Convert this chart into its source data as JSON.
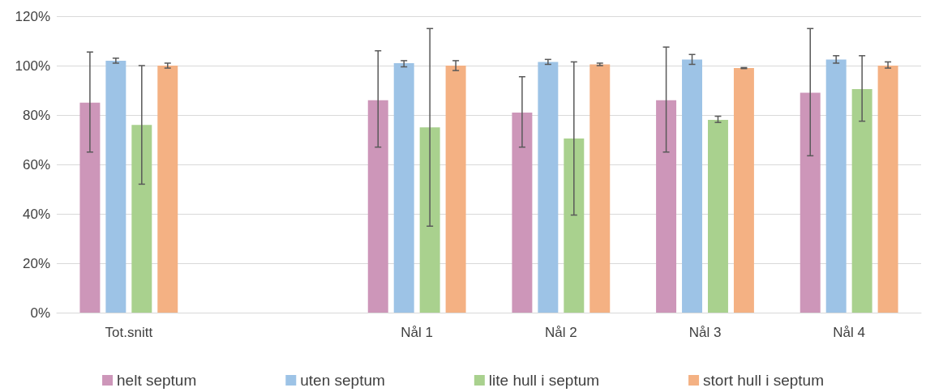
{
  "chart_data": {
    "type": "bar",
    "categories": [
      "Tot.snitt",
      null,
      "Nål 1",
      "Nål 2",
      "Nål 3",
      "Nål 4"
    ],
    "series": [
      {
        "name": "helt septum",
        "color": "#cd96b9",
        "values": [
          85,
          null,
          86,
          81,
          86,
          89
        ],
        "errors": [
          [
            65,
            105.5
          ],
          null,
          [
            67,
            106
          ],
          [
            67,
            95.5
          ],
          [
            65,
            107.5
          ],
          [
            63.5,
            115
          ]
        ]
      },
      {
        "name": "uten septum",
        "color": "#9dc3e6",
        "values": [
          102,
          null,
          101,
          101.5,
          102.5,
          102.5
        ],
        "errors": [
          [
            101,
            103
          ],
          null,
          [
            99.5,
            102
          ],
          [
            100.5,
            102.5
          ],
          [
            100.5,
            104.5
          ],
          [
            101,
            104
          ]
        ]
      },
      {
        "name": "lite hull i septum",
        "color": "#a9d18e",
        "values": [
          76,
          null,
          75,
          70.5,
          78,
          90.5
        ],
        "errors": [
          [
            52,
            100
          ],
          null,
          [
            35,
            115
          ],
          [
            39.5,
            101.5
          ],
          [
            77,
            79.5
          ],
          [
            77.5,
            104
          ]
        ]
      },
      {
        "name": "stort hull i septum",
        "color": "#f4b183",
        "values": [
          100,
          null,
          100,
          100.5,
          99,
          100
        ],
        "errors": [
          [
            99,
            101
          ],
          null,
          [
            98,
            102
          ],
          [
            100,
            101
          ],
          [
            98.8,
            99.2
          ],
          [
            99,
            101.5
          ]
        ]
      }
    ],
    "ylim": [
      0,
      120
    ],
    "yticks": [
      {
        "value": 0,
        "label": "0%"
      },
      {
        "value": 20,
        "label": "20%"
      },
      {
        "value": 40,
        "label": "40%"
      },
      {
        "value": 60,
        "label": "60%"
      },
      {
        "value": 80,
        "label": "80%"
      },
      {
        "value": 100,
        "label": "100%"
      },
      {
        "value": 120,
        "label": "120%"
      }
    ],
    "grid": "y",
    "legend": "bottom"
  }
}
